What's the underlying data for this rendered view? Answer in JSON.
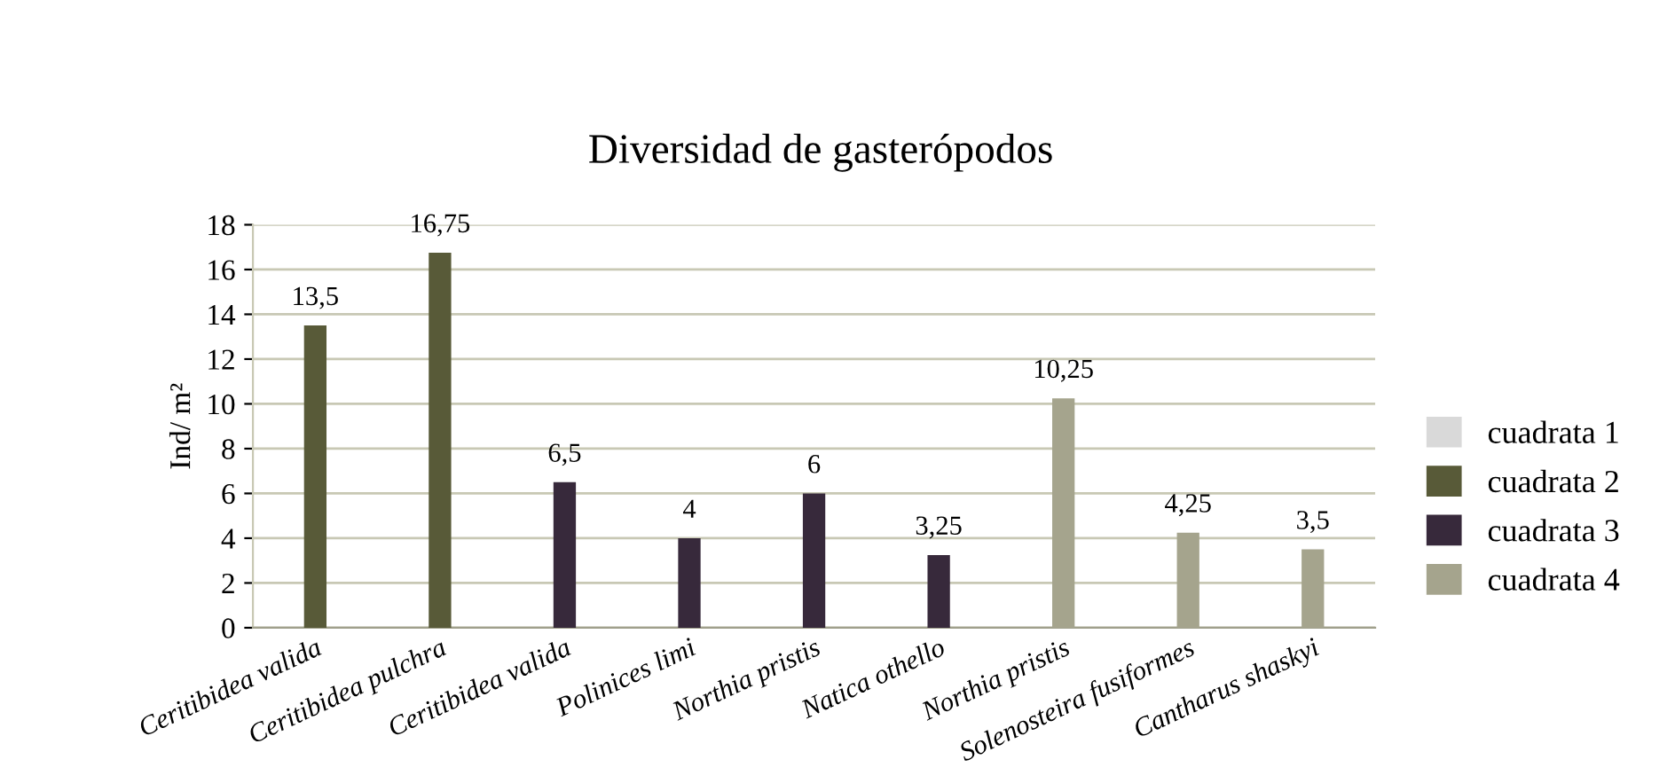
{
  "chart_data": {
    "type": "bar",
    "title": "Diversidad de gasterópodos",
    "ylabel": "Ind/ m²",
    "categories": [
      "Ceritibidea valida",
      "Ceritibidea pulchra",
      "Ceritibidea valida",
      "Polinices limi",
      "Northia pristis",
      "Natica othello",
      "Northia pristis",
      "Solenosteira fusiformes",
      "Cantharus shaskyi"
    ],
    "series": [
      {
        "name": "cuadrata 1",
        "color": "#d9d9d9",
        "values": [
          null,
          null,
          null,
          null,
          null,
          null,
          null,
          null,
          null
        ],
        "value_labels": [
          null,
          null,
          null,
          null,
          null,
          null,
          null,
          null,
          null
        ]
      },
      {
        "name": "cuadrata 2",
        "color": "#585a38",
        "values": [
          13.5,
          16.75,
          null,
          null,
          null,
          null,
          null,
          null,
          null
        ],
        "value_labels": [
          "13,5",
          "16,75",
          null,
          null,
          null,
          null,
          null,
          null,
          null
        ]
      },
      {
        "name": "cuadrata 3",
        "color": "#37293b",
        "values": [
          null,
          null,
          6.5,
          4,
          6,
          3.25,
          null,
          null,
          null
        ],
        "value_labels": [
          null,
          null,
          "6,5",
          "4",
          "6",
          "3,25",
          null,
          null,
          null
        ]
      },
      {
        "name": "cuadrata 4",
        "color": "#a5a48d",
        "values": [
          null,
          null,
          null,
          null,
          null,
          null,
          10.25,
          4.25,
          3.5
        ],
        "value_labels": [
          null,
          null,
          null,
          null,
          null,
          null,
          "10,25",
          "4,25",
          "3,5"
        ]
      }
    ],
    "ylim": [
      0,
      18
    ],
    "yticks": [
      0,
      2,
      4,
      6,
      8,
      10,
      12,
      14,
      16,
      18
    ],
    "grid": "y",
    "legend": "right"
  }
}
